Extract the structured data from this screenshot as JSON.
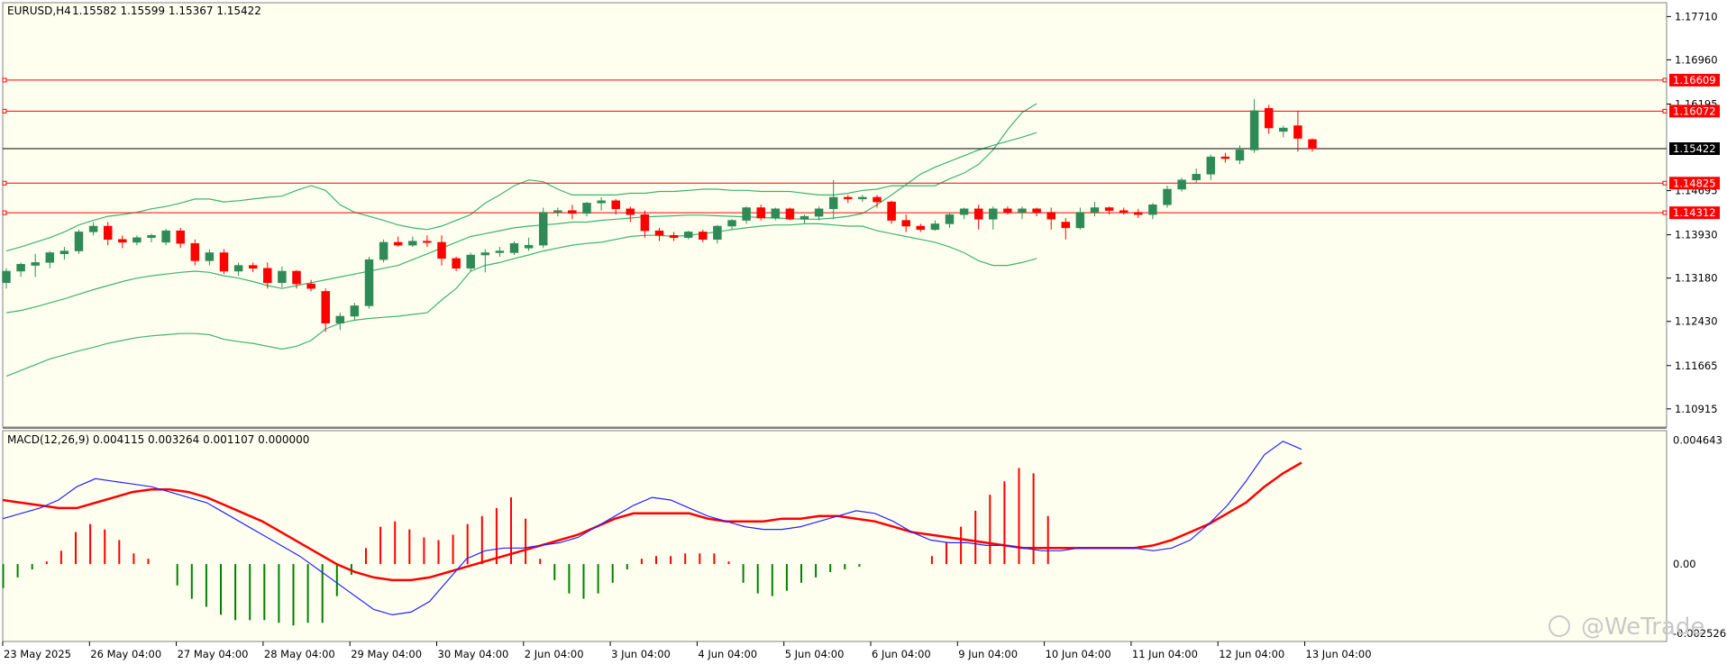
{
  "colors": {
    "background": "#fffff0",
    "bull_candle": "#2e8b57",
    "bear_candle": "#ff0000",
    "bollinger": "#3cb371",
    "macd_line": "#2222ff",
    "signal_line": "#ff0000",
    "hist_positive": "#ff0000",
    "hist_negative": "#008000",
    "level_line": "#ff0000",
    "current_price": "#000000"
  },
  "header": {
    "symbol": "EURUSD,H4",
    "ohlc": "1.15582 1.15599 1.15367 1.15422"
  },
  "macd": {
    "label": "MACD(12,26,9) 0.004115 0.003264 0.001107 0.000000",
    "axis_labels": [
      "0.004643",
      "0.00",
      "-0.002526"
    ],
    "macd_line": [
      0.0017,
      0.0019,
      0.0021,
      0.0024,
      0.0029,
      0.0032,
      0.0031,
      0.003,
      0.0029,
      0.0027,
      0.0025,
      0.0023,
      0.0019,
      0.0015,
      0.0011,
      0.0007,
      0.0003,
      -0.0002,
      -0.0007,
      -0.0012,
      -0.0017,
      -0.0019,
      -0.0018,
      -0.0014,
      -0.0006,
      0.0002,
      0.0005,
      0.0006,
      0.0006,
      0.0007,
      0.0008,
      0.001,
      0.0014,
      0.0018,
      0.0022,
      0.0025,
      0.0024,
      0.0021,
      0.0018,
      0.0016,
      0.0014,
      0.0013,
      0.0013,
      0.0014,
      0.0016,
      0.0018,
      0.002,
      0.0019,
      0.0016,
      0.0012,
      0.0009,
      0.0008,
      0.0008,
      0.0007,
      0.0007,
      0.0006,
      0.0005,
      0.0005,
      0.0006,
      0.0006,
      0.0006,
      0.0006,
      0.0005,
      0.0006,
      0.0009,
      0.0015,
      0.0022,
      0.0031,
      0.0041,
      0.0046,
      0.0043
    ],
    "signal_line": [
      0.0024,
      0.0023,
      0.0022,
      0.0021,
      0.0021,
      0.0023,
      0.0025,
      0.0027,
      0.0028,
      0.0028,
      0.0027,
      0.0025,
      0.0022,
      0.0019,
      0.0016,
      0.0012,
      0.0008,
      0.0004,
      0,
      -0.0003,
      -0.0005,
      -0.0006,
      -0.0006,
      -0.0005,
      -0.0003,
      -0.0001,
      0.0001,
      0.0003,
      0.0005,
      0.0007,
      0.0009,
      0.0011,
      0.0014,
      0.0017,
      0.0019,
      0.0019,
      0.0019,
      0.0019,
      0.0017,
      0.0016,
      0.0016,
      0.0016,
      0.0017,
      0.0017,
      0.0018,
      0.0018,
      0.0017,
      0.0016,
      0.0014,
      0.0012,
      0.0011,
      0.001,
      0.0009,
      0.0008,
      0.0007,
      0.0006,
      0.0006,
      0.0006,
      0.0006,
      0.0006,
      0.0006,
      0.0006,
      0.0007,
      0.0009,
      0.0012,
      0.0015,
      0.0019,
      0.0023,
      0.0029,
      0.0034,
      0.0038
    ],
    "histogram": [
      -0.0009,
      -0.0005,
      -0.0002,
      0.0001,
      0.0005,
      0.0012,
      0.0015,
      0.0013,
      0.0009,
      0.0004,
      0.0002,
      0,
      -0.0008,
      -0.0013,
      -0.0016,
      -0.0019,
      -0.0021,
      -0.0021,
      -0.0021,
      -0.0022,
      -0.0023,
      -0.0022,
      -0.0022,
      -0.0012,
      -0.0004,
      0.0006,
      0.0014,
      0.0016,
      0.0013,
      0.001,
      0.0009,
      0.0011,
      0.0015,
      0.0018,
      0.0021,
      0.0025,
      0.0017,
      0.0002,
      -0.0006,
      -0.0011,
      -0.0013,
      -0.0011,
      -0.0007,
      -0.0002,
      0.0002,
      0.0003,
      0.0003,
      0.0004,
      0.0004,
      0.0004,
      0.0001,
      -0.0007,
      -0.0011,
      -0.0012,
      -0.001,
      -0.0007,
      -0.0005,
      -0.0003,
      -0.0002,
      -0.0001,
      0,
      0,
      0,
      0,
      0.0003,
      0.0008,
      0.0014,
      0.002,
      0.0026,
      0.0031,
      0.0036,
      0.0034,
      0.0018
    ]
  },
  "price_axis": {
    "labels": [
      "1.17710",
      "1.16960",
      "1.16195",
      "1.14695",
      "1.13930",
      "1.13180",
      "1.12430",
      "1.11665",
      "1.10915"
    ]
  },
  "price_tags": [
    {
      "value": "1.16609",
      "kind": "level"
    },
    {
      "value": "1.16072",
      "kind": "level"
    },
    {
      "value": "1.15422",
      "kind": "current"
    },
    {
      "value": "1.14825",
      "kind": "level"
    },
    {
      "value": "1.14312",
      "kind": "level"
    }
  ],
  "time_axis": {
    "labels": [
      "23 May 2025",
      "26 May 04:00",
      "27 May 04:00",
      "28 May 04:00",
      "29 May 04:00",
      "30 May 04:00",
      "2 Jun 04:00",
      "3 Jun 04:00",
      "4 Jun 04:00",
      "5 Jun 04:00",
      "6 Jun 04:00",
      "9 Jun 04:00",
      "10 Jun 04:00",
      "11 Jun 04:00",
      "12 Jun 04:00",
      "13 Jun 04:00"
    ]
  },
  "watermark": "@WeTrade",
  "chart_data": {
    "type": "candlestick",
    "symbol": "EURUSD",
    "timeframe": "H4",
    "ylim": [
      1.106,
      1.1795
    ],
    "horizontal_levels": [
      1.16609,
      1.16072,
      1.14825,
      1.14312
    ],
    "current_price": 1.15422,
    "candles": [
      [
        1.131,
        1.1335,
        1.13,
        1.133
      ],
      [
        1.133,
        1.1345,
        1.132,
        1.1342
      ],
      [
        1.134,
        1.136,
        1.132,
        1.1345
      ],
      [
        1.1345,
        1.1365,
        1.1335,
        1.1362
      ],
      [
        1.136,
        1.1372,
        1.135,
        1.1365
      ],
      [
        1.1365,
        1.1402,
        1.136,
        1.1398
      ],
      [
        1.1398,
        1.1415,
        1.1392,
        1.1408
      ],
      [
        1.1408,
        1.1415,
        1.1375,
        1.1385
      ],
      [
        1.1385,
        1.1392,
        1.137,
        1.138
      ],
      [
        1.138,
        1.1392,
        1.1375,
        1.1388
      ],
      [
        1.1388,
        1.1395,
        1.138,
        1.1392
      ],
      [
        1.138,
        1.1403,
        1.1375,
        1.14
      ],
      [
        1.14,
        1.1405,
        1.137,
        1.1378
      ],
      [
        1.1378,
        1.1385,
        1.134,
        1.1348
      ],
      [
        1.1348,
        1.1368,
        1.134,
        1.1362
      ],
      [
        1.1362,
        1.1368,
        1.1325,
        1.133
      ],
      [
        1.133,
        1.1345,
        1.1322,
        1.134
      ],
      [
        1.134,
        1.1345,
        1.1328,
        1.1335
      ],
      [
        1.1335,
        1.1345,
        1.13,
        1.131
      ],
      [
        1.131,
        1.1338,
        1.1302,
        1.133
      ],
      [
        1.133,
        1.1332,
        1.13,
        1.1308
      ],
      [
        1.1308,
        1.1315,
        1.1295,
        1.13
      ],
      [
        1.1295,
        1.13,
        1.1225,
        1.124
      ],
      [
        1.124,
        1.1258,
        1.1228,
        1.1252
      ],
      [
        1.1252,
        1.1275,
        1.1245,
        1.127
      ],
      [
        1.127,
        1.1355,
        1.1265,
        1.135
      ],
      [
        1.135,
        1.1385,
        1.1345,
        1.138
      ],
      [
        1.138,
        1.139,
        1.1372,
        1.1375
      ],
      [
        1.1375,
        1.139,
        1.1372,
        1.1382
      ],
      [
        1.1382,
        1.1392,
        1.1372,
        1.138
      ],
      [
        1.138,
        1.1392,
        1.134,
        1.1352
      ],
      [
        1.1352,
        1.1355,
        1.133,
        1.1335
      ],
      [
        1.1335,
        1.1362,
        1.133,
        1.1358
      ],
      [
        1.1358,
        1.1368,
        1.1328,
        1.1362
      ],
      [
        1.1362,
        1.1372,
        1.1355,
        1.1365
      ],
      [
        1.1362,
        1.1382,
        1.1358,
        1.1378
      ],
      [
        1.137,
        1.1388,
        1.1365,
        1.1375
      ],
      [
        1.1375,
        1.144,
        1.137,
        1.1432
      ],
      [
        1.1432,
        1.144,
        1.1425,
        1.1435
      ],
      [
        1.1435,
        1.1445,
        1.142,
        1.143
      ],
      [
        1.143,
        1.145,
        1.1425,
        1.1448
      ],
      [
        1.1448,
        1.1458,
        1.1435,
        1.1452
      ],
      [
        1.1452,
        1.1455,
        1.1428,
        1.1438
      ],
      [
        1.1438,
        1.1442,
        1.1415,
        1.1428
      ],
      [
        1.1428,
        1.1435,
        1.1388,
        1.14
      ],
      [
        1.14,
        1.1405,
        1.1382,
        1.1392
      ],
      [
        1.1392,
        1.1398,
        1.1382,
        1.1388
      ],
      [
        1.1388,
        1.14,
        1.1385,
        1.1398
      ],
      [
        1.1398,
        1.1402,
        1.138,
        1.1385
      ],
      [
        1.1385,
        1.141,
        1.1378,
        1.1408
      ],
      [
        1.1408,
        1.142,
        1.1402,
        1.1418
      ],
      [
        1.1418,
        1.1442,
        1.1412,
        1.144
      ],
      [
        1.144,
        1.1445,
        1.1418,
        1.1422
      ],
      [
        1.1422,
        1.144,
        1.1418,
        1.1438
      ],
      [
        1.1438,
        1.144,
        1.1418,
        1.142
      ],
      [
        1.142,
        1.1428,
        1.1412,
        1.1425
      ],
      [
        1.1425,
        1.1442,
        1.1418,
        1.1438
      ],
      [
        1.1438,
        1.1488,
        1.142,
        1.1458
      ],
      [
        1.1458,
        1.1462,
        1.1448,
        1.1455
      ],
      [
        1.1455,
        1.1462,
        1.145,
        1.1458
      ],
      [
        1.1458,
        1.1462,
        1.144,
        1.145
      ],
      [
        1.145,
        1.1452,
        1.1412,
        1.1418
      ],
      [
        1.1418,
        1.1428,
        1.1398,
        1.1408
      ],
      [
        1.1408,
        1.1412,
        1.1398,
        1.1402
      ],
      [
        1.1402,
        1.1418,
        1.14,
        1.1412
      ],
      [
        1.1412,
        1.1432,
        1.1405,
        1.1428
      ],
      [
        1.1428,
        1.144,
        1.142,
        1.1438
      ],
      [
        1.1438,
        1.1445,
        1.1402,
        1.142
      ],
      [
        1.142,
        1.1442,
        1.1402,
        1.1438
      ],
      [
        1.1438,
        1.1442,
        1.1428,
        1.1432
      ],
      [
        1.1432,
        1.1442,
        1.142,
        1.1438
      ],
      [
        1.1438,
        1.144,
        1.1425,
        1.1432
      ],
      [
        1.1432,
        1.144,
        1.1402,
        1.142
      ],
      [
        1.1415,
        1.1422,
        1.1385,
        1.1405
      ],
      [
        1.1405,
        1.144,
        1.1402,
        1.1432
      ],
      [
        1.1432,
        1.145,
        1.1425,
        1.144
      ],
      [
        1.144,
        1.1442,
        1.1428,
        1.1435
      ],
      [
        1.1435,
        1.144,
        1.1428,
        1.1432
      ],
      [
        1.1432,
        1.1438,
        1.1422,
        1.1428
      ],
      [
        1.1428,
        1.1448,
        1.142,
        1.1445
      ],
      [
        1.1445,
        1.1478,
        1.144,
        1.1472
      ],
      [
        1.1472,
        1.1492,
        1.1468,
        1.1488
      ],
      [
        1.1488,
        1.1508,
        1.1482,
        1.1498
      ],
      [
        1.1498,
        1.1532,
        1.1488,
        1.1528
      ],
      [
        1.1528,
        1.1535,
        1.1518,
        1.1525
      ],
      [
        1.1522,
        1.1548,
        1.1515,
        1.154
      ],
      [
        1.154,
        1.1628,
        1.1535,
        1.1608
      ],
      [
        1.1612,
        1.1618,
        1.1568,
        1.1578
      ],
      [
        1.1572,
        1.1582,
        1.1562,
        1.1578
      ],
      [
        1.1582,
        1.1608,
        1.1537,
        1.156
      ],
      [
        1.1558,
        1.156,
        1.1537,
        1.1542
      ]
    ],
    "bollinger_upper": [
      1.1365,
      1.1372,
      1.138,
      1.1388,
      1.1398,
      1.141,
      1.1418,
      1.1425,
      1.1428,
      1.1432,
      1.1438,
      1.1442,
      1.1448,
      1.1455,
      1.1455,
      1.145,
      1.1452,
      1.1455,
      1.1458,
      1.146,
      1.147,
      1.1478,
      1.147,
      1.1445,
      1.1432,
      1.1425,
      1.1418,
      1.141,
      1.1405,
      1.1402,
      1.1408,
      1.1418,
      1.1428,
      1.1448,
      1.1462,
      1.1478,
      1.1488,
      1.1485,
      1.1472,
      1.1462,
      1.1462,
      1.1462,
      1.1462,
      1.1465,
      1.1465,
      1.1468,
      1.1468,
      1.147,
      1.1472,
      1.1472,
      1.147,
      1.147,
      1.1468,
      1.1468,
      1.1468,
      1.1465,
      1.1462,
      1.1462,
      1.1465,
      1.147,
      1.1472,
      1.1478,
      1.1478,
      1.1478,
      1.1478,
      1.149,
      1.15,
      1.1515,
      1.154,
      1.1575,
      1.1605,
      1.162
    ],
    "bollinger_middle": [
      1.1258,
      1.1262,
      1.1268,
      1.1275,
      1.1282,
      1.129,
      1.1298,
      1.1305,
      1.1312,
      1.1318,
      1.1322,
      1.1325,
      1.1328,
      1.133,
      1.1328,
      1.1322,
      1.1318,
      1.1312,
      1.1305,
      1.13,
      1.1305,
      1.131,
      1.1315,
      1.132,
      1.1325,
      1.133,
      1.1335,
      1.134,
      1.135,
      1.136,
      1.137,
      1.138,
      1.139,
      1.1395,
      1.14,
      1.1405,
      1.1408,
      1.141,
      1.1412,
      1.1415,
      1.1415,
      1.1418,
      1.142,
      1.1422,
      1.1424,
      1.1425,
      1.1426,
      1.1427,
      1.1427,
      1.1426,
      1.1425,
      1.1424,
      1.1423,
      1.1422,
      1.1421,
      1.142,
      1.142,
      1.1422,
      1.1425,
      1.143,
      1.1445,
      1.1462,
      1.148,
      1.1498,
      1.151,
      1.152,
      1.153,
      1.154,
      1.1548,
      1.1555,
      1.1562,
      1.157
    ],
    "bollinger_lower": [
      1.1148,
      1.1158,
      1.1168,
      1.1178,
      1.1185,
      1.1192,
      1.1198,
      1.1205,
      1.121,
      1.1215,
      1.1218,
      1.122,
      1.1222,
      1.1222,
      1.122,
      1.1212,
      1.1208,
      1.1205,
      1.12,
      1.1195,
      1.12,
      1.121,
      1.123,
      1.124,
      1.1245,
      1.1248,
      1.125,
      1.1252,
      1.1255,
      1.1258,
      1.128,
      1.13,
      1.133,
      1.134,
      1.1345,
      1.1352,
      1.1358,
      1.1365,
      1.137,
      1.1375,
      1.1378,
      1.138,
      1.1385,
      1.139,
      1.1392,
      1.1392,
      1.139,
      1.1392,
      1.1395,
      1.1398,
      1.1402,
      1.1405,
      1.1408,
      1.141,
      1.141,
      1.1412,
      1.1412,
      1.141,
      1.1408,
      1.1408,
      1.14,
      1.1395,
      1.139,
      1.1385,
      1.138,
      1.1372,
      1.1362,
      1.1348,
      1.134,
      1.134,
      1.1345,
      1.1352
    ]
  }
}
